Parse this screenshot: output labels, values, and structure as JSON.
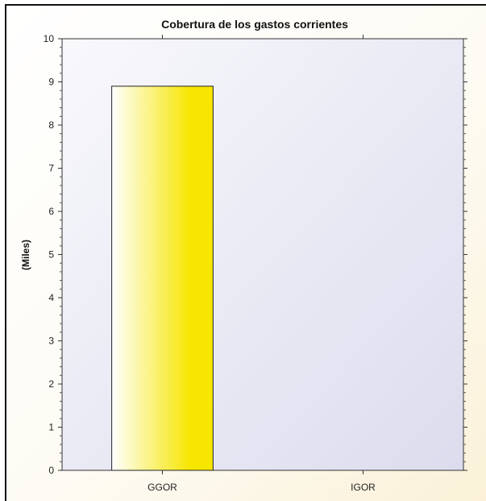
{
  "chart_data": {
    "type": "bar",
    "title": "Cobertura de los gastos corrientes",
    "xlabel": "",
    "ylabel": "(Miles)",
    "categories": [
      "GGOR",
      "IGOR"
    ],
    "values": [
      8.9,
      0
    ],
    "ylim": [
      0,
      10
    ],
    "yticks": [
      0,
      1,
      2,
      3,
      4,
      5,
      6,
      7,
      8,
      9,
      10
    ],
    "grid": false,
    "bar_color": "#f6e600",
    "plot_background": "#e4e4f2"
  }
}
